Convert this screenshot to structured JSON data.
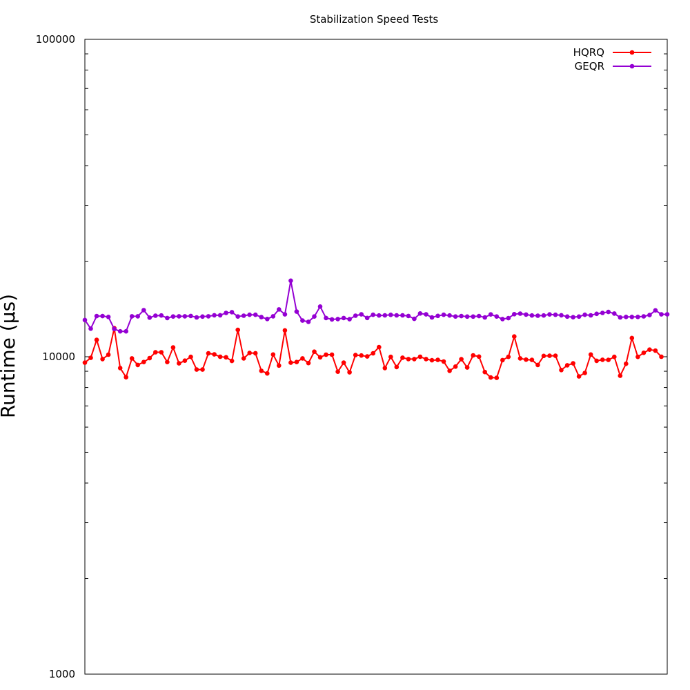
{
  "chart_data": {
    "type": "line",
    "title": "Stabilization Speed Tests",
    "xlabel": "",
    "ylabel": "Runtime (µs)",
    "y_scale": "log",
    "ylim": [
      1000,
      100000
    ],
    "y_ticks": [
      "1000",
      "10000",
      "100000"
    ],
    "legend_position": "top-right",
    "grid": false,
    "x": [
      1,
      2,
      3,
      4,
      5,
      6,
      7,
      8,
      9,
      10,
      11,
      12,
      13,
      14,
      15,
      16,
      17,
      18,
      19,
      20,
      21,
      22,
      23,
      24,
      25,
      26,
      27,
      28,
      29,
      30,
      31,
      32,
      33,
      34,
      35,
      36,
      37,
      38,
      39,
      40,
      41,
      42,
      43,
      44,
      45,
      46,
      47,
      48,
      49,
      50,
      51,
      52,
      53,
      54,
      55,
      56,
      57,
      58,
      59,
      60,
      61,
      62,
      63,
      64,
      65,
      66,
      67,
      68,
      69,
      70,
      71,
      72,
      73,
      74,
      75,
      76,
      77,
      78,
      79,
      80,
      81,
      82,
      83,
      84,
      85,
      86,
      87,
      88,
      89,
      90,
      91,
      92,
      93,
      94,
      95,
      96,
      97,
      98,
      99,
      100
    ],
    "series": [
      {
        "name": "HQRQ",
        "color": "#ff0000",
        "values": [
          9580,
          9920,
          11300,
          9830,
          10150,
          12300,
          9210,
          8620,
          9880,
          9420,
          9620,
          9900,
          10330,
          10330,
          9620,
          10700,
          9530,
          9720,
          9990,
          9110,
          9110,
          10250,
          10170,
          10000,
          9960,
          9700,
          12150,
          9880,
          10280,
          10260,
          9030,
          8860,
          10160,
          9380,
          12110,
          9580,
          9620,
          9880,
          9550,
          10370,
          9960,
          10150,
          10150,
          8970,
          9580,
          8930,
          10120,
          10090,
          10020,
          10250,
          10720,
          9210,
          9990,
          9280,
          9930,
          9830,
          9830,
          10000,
          9830,
          9750,
          9770,
          9660,
          9030,
          9310,
          9820,
          9250,
          10100,
          10010,
          8950,
          8600,
          8580,
          9760,
          9990,
          11580,
          9880,
          9790,
          9770,
          9420,
          10060,
          10070,
          10070,
          9080,
          9400,
          9530,
          8670,
          8890,
          10160,
          9710,
          9780,
          9770,
          9990,
          8710,
          9500,
          11450,
          9990,
          10290,
          10530,
          10450,
          10000,
          null
        ]
      },
      {
        "name": "GEQR",
        "color": "#9400d3",
        "values": [
          13050,
          12260,
          13430,
          13430,
          13350,
          12230,
          12020,
          12020,
          13410,
          13410,
          14020,
          13280,
          13470,
          13490,
          13240,
          13390,
          13410,
          13410,
          13440,
          13300,
          13380,
          13410,
          13510,
          13510,
          13740,
          13820,
          13390,
          13470,
          13560,
          13560,
          13330,
          13150,
          13410,
          14100,
          13600,
          17360,
          13870,
          13000,
          12880,
          13390,
          14390,
          13240,
          13110,
          13140,
          13240,
          13130,
          13470,
          13600,
          13250,
          13560,
          13490,
          13500,
          13550,
          13500,
          13500,
          13440,
          13160,
          13690,
          13600,
          13300,
          13450,
          13560,
          13490,
          13390,
          13430,
          13380,
          13380,
          13430,
          13300,
          13590,
          13390,
          13140,
          13230,
          13620,
          13670,
          13580,
          13490,
          13470,
          13490,
          13590,
          13560,
          13510,
          13380,
          13320,
          13380,
          13560,
          13500,
          13650,
          13740,
          13840,
          13680,
          13300,
          13350,
          13350,
          13350,
          13400,
          13530,
          14000,
          13600,
          13600
        ]
      }
    ]
  }
}
